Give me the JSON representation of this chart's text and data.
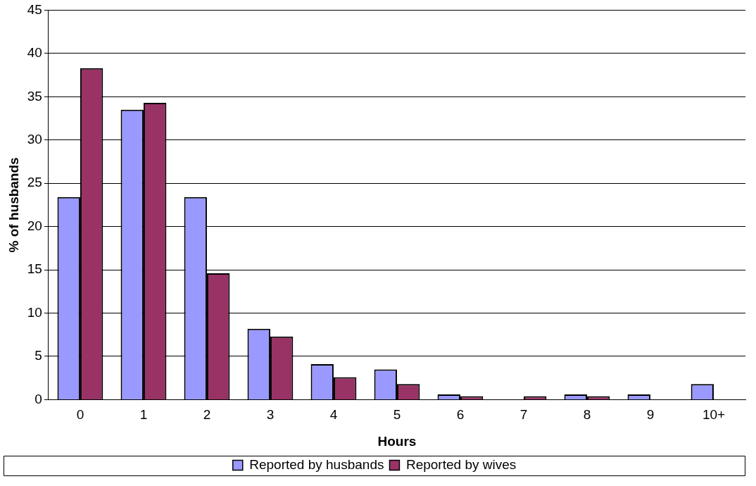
{
  "chart_data": {
    "type": "bar",
    "xlabel": "Hours",
    "ylabel": "% of husbands",
    "categories": [
      "0",
      "1",
      "2",
      "3",
      "4",
      "5",
      "6",
      "7",
      "8",
      "9",
      "10+"
    ],
    "series": [
      {
        "name": "Reported by husbands",
        "color": "#9999ff",
        "values": [
          23.4,
          33.5,
          23.4,
          8.2,
          4.1,
          3.5,
          0.6,
          0,
          0.6,
          0.6,
          1.8
        ]
      },
      {
        "name": "Reported by wives",
        "color": "#993366",
        "values": [
          38.3,
          34.3,
          14.6,
          7.3,
          2.6,
          1.8,
          0.4,
          0.4,
          0.4,
          0,
          0
        ]
      }
    ],
    "ylim": [
      0,
      45
    ],
    "yticks": [
      0,
      5,
      10,
      15,
      20,
      25,
      30,
      35,
      40,
      45
    ],
    "grid": "y",
    "legend": "bottom"
  }
}
